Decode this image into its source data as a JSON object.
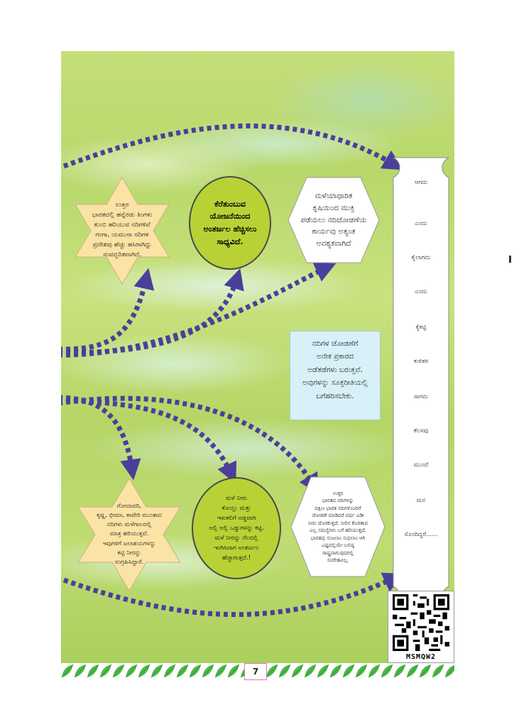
{
  "star_top_left": {
    "lines": [
      "ಉತ್ತರ",
      "ಭಾರತದಲ್ಲಿ ಹನ್ನೆರಡು ತಿಂಗಳು",
      "ತುಂಬಿ ಹರಿಯುವ ನದಿಗಳಿವೆ",
      "ಗಂಗಾ, ಯಮುನಾ ನದಿಗಳ",
      "ಪ್ರದೇಶವು ಹೆಚ್ಚು ಹಸಿರಾಗಿದ್ದು",
      "ಸಂಪದ್ಭರಿತವಾಗಿದೆ."
    ]
  },
  "oval_top": {
    "lines": [
      "ಕೆರೆತುಂಬುವ",
      "ಯೋಜನೆಯಿಂದ",
      "ಅಂತರ್ಜಲ ಹೆಚ್ಚಿಸಲು",
      "ಸಾಧ್ಯವಿದೆ."
    ]
  },
  "hex_top": {
    "lines": [
      "ಮಳೆಯಾಧಾರಿತ",
      "ಕೃಷಿಯಿಂದ ಮುಕ್ತಿ",
      "ಪಡೆಯಲು ನದಿಜೋಡಣೆಯ",
      "ಕಾರ್ಯವು ಅತ್ಯಂತ",
      "ಅವಶ್ಯಕವಾಗಿದೆ"
    ]
  },
  "rect_middle": {
    "lines": [
      "ನದಿಗಳ ಜೋಡಣೆಗೆ",
      "ಅನೇಕ ಪ್ರಕಾರದ",
      "ಅಡೆತಡೆಗಳು ಬರುತ್ತವೆ.",
      "ಅವುಗಳನ್ನು ಸೂಕ್ತರೀತಿಯಲ್ಲಿ",
      "ಬಗೆಹರಿಸಬೇಕು."
    ]
  },
  "star_bottom_left": {
    "lines": [
      "ಗೋದಾವರಿ,",
      "ಕೃಷ್ಣ, ಭೀಮಾ, ಕಾವೇರಿ ಮುಂತಾದ",
      "ನದಿಗಳು ಮಳೆಗಾಲದಲ್ಲಿ",
      "ಮಾತ್ರ ಹರಿಯುತ್ತವೆ.",
      "ಇವುಗಳಿಗೆ ಜಲಾಶಯಗಳನ್ನು",
      "ಕಟ್ಟಿ ನೀರನ್ನು",
      "ಸಂಗ್ರಹಿಸಿದ್ದಾರೆ."
    ]
  },
  "oval_bottom": {
    "lines": [
      "ಮಳೆ ನೀರು",
      "ಕೊಯ್ಲು ಮತ್ತು",
      "ಇಳುಕಲಿಗೆ ಅಡ್ಡವಾಗಿ",
      "ಅಲ್ಲಿ ಅಲ್ಲಿ ಒಡ್ಡುಗಳನ್ನು ಕಟ್ಟಿ.",
      "ಮಳೆ ನೀರನ್ನು ನೆಲದಲ್ಲಿ",
      "ಇಂಗಿಸಿದಾಗ ಅಂತರ್ಜಲ",
      "ಹೆಚ್ಚಾಗುತ್ತದೆ.!"
    ]
  },
  "hex_bottom": {
    "lines": [
      "ಉತ್ತರ",
      "ಭಾರತದ ನದಿಗಳನ್ನು",
      "ದಕ್ಷಿಣ ಭಾರತ ನದಿಗಳೊಂದಿಗೆ",
      "ಜೋಡಣೆ ಮಾಡಿದರೆ ವರ್ಷ ಎಡೀ",
      "ನೀರು ದೊರಕುತ್ತದೆ. ನೀರಿನ ಕೊರತಾದ",
      "ಎಲ್ಲ ಸಮಸ್ಯೆಗಳು ಬಗೆ ಹರಿಯುತ್ತದೆ.",
      "ಭಾರತವು ಸುಜಲಾಂ ಸುಫಲಾಂ ಆಗಿ",
      "ಎಷ್ಟದಲ್ಲಿಯೇ ಬಲಿಷ್ಠ",
      "ರಾಷ್ಟ್ರವಾಗುವುದರಲ್ಲಿ",
      "ಸಂದೇಹವಿಲ್ಲ."
    ]
  },
  "scroll_words": [
    "ಆಗದು",
    "ಎಂದು",
    "ಕೈಲಾಗದು",
    "ಎಂದು",
    "ಕೈಕಟ್ಟಿ",
    "ಕುಳಿತರ",
    "ಸಾಗದು",
    "ಕೆಲಸವು",
    "ಮುಂದೆ",
    "ಮನ",
    "ಸೊಂದಿದ್ದರೆ......"
  ],
  "qr_caption": "MSMQW2",
  "page_number": "7",
  "colors": {
    "arrow": "#4a3f9b",
    "oval_fill": "#b8d236",
    "star_fill": "#fbe3a6",
    "rect_fill": "#d8f0f8",
    "leaf": "#4fb84a"
  },
  "icons": [
    "arrow-icon",
    "qr-code-icon",
    "leaf-border-icon"
  ]
}
